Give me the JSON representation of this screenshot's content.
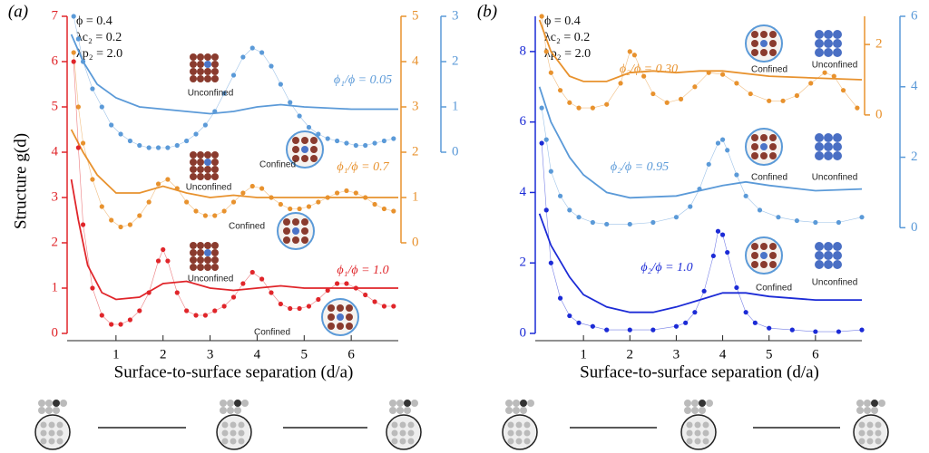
{
  "chart_data": [
    {
      "type": "line",
      "panel_label": "(a)",
      "y_label": "Structure g(d)",
      "x_label": "Surface-to-surface separation (d/a)",
      "params": [
        "ϕ = 0.4",
        "λc₂ = 0.2",
        "λp₂ = 2.0"
      ],
      "annotations": [
        "Unconfined",
        "Confined",
        "Unconfined",
        "Confined",
        "Unconfined",
        "Confined"
      ],
      "xlim": [
        0,
        7
      ],
      "xticks": [
        1,
        2,
        3,
        4,
        5,
        6
      ],
      "ylim": [
        0,
        7
      ],
      "yticks": [
        0,
        1,
        2,
        3,
        4,
        5,
        6,
        7
      ],
      "y2lim": [
        -2,
        5
      ],
      "y2ticks": [
        0,
        1,
        2,
        3,
        4,
        5
      ],
      "y3lim": [
        -4,
        3
      ],
      "y3ticks": [
        0,
        1,
        2,
        3
      ],
      "axis_colors": {
        "y": "#e0252a",
        "y2": "#e8922e",
        "y3": "#5b9ad8"
      },
      "series": [
        {
          "name": "ϕ₁/ϕ = 0.05",
          "color": "#5b9ad8",
          "axis": "y3",
          "style": "markers",
          "x": [
            0.1,
            0.2,
            0.3,
            0.5,
            0.7,
            0.9,
            1.1,
            1.3,
            1.5,
            1.7,
            1.9,
            2.1,
            2.3,
            2.5,
            2.7,
            2.9,
            3.1,
            3.3,
            3.5,
            3.7,
            3.9,
            4.1,
            4.3,
            4.5,
            4.7,
            4.9,
            5.1,
            5.3,
            5.5,
            5.7,
            5.9,
            6.1,
            6.3,
            6.5,
            6.7,
            6.9
          ],
          "values": [
            3.0,
            2.5,
            2.0,
            1.4,
            1.0,
            0.6,
            0.4,
            0.25,
            0.15,
            0.1,
            0.1,
            0.1,
            0.15,
            0.25,
            0.4,
            0.6,
            0.9,
            1.3,
            1.7,
            2.1,
            2.3,
            2.2,
            1.9,
            1.5,
            1.1,
            0.8,
            0.55,
            0.4,
            0.3,
            0.25,
            0.2,
            0.15,
            0.15,
            0.2,
            0.25,
            0.3
          ]
        },
        {
          "color": "#5b9ad8",
          "axis": "y3",
          "style": "line",
          "x": [
            0.05,
            0.3,
            0.6,
            1.0,
            1.5,
            2.0,
            2.5,
            3.0,
            3.5,
            4.0,
            4.5,
            5.0,
            6.0,
            7.0
          ],
          "values": [
            2.6,
            2.0,
            1.5,
            1.2,
            1.0,
            0.95,
            0.9,
            0.85,
            0.9,
            1.0,
            1.05,
            1.0,
            0.95,
            0.95
          ]
        },
        {
          "name": "ϕ₁/ϕ = 0.7",
          "color": "#e8922e",
          "axis": "y2",
          "style": "markers",
          "x": [
            0.1,
            0.2,
            0.3,
            0.5,
            0.7,
            0.9,
            1.1,
            1.3,
            1.5,
            1.7,
            1.9,
            2.1,
            2.3,
            2.5,
            2.7,
            2.9,
            3.1,
            3.3,
            3.5,
            3.7,
            3.9,
            4.1,
            4.3,
            4.5,
            4.7,
            4.9,
            5.1,
            5.3,
            5.5,
            5.7,
            5.9,
            6.1,
            6.3,
            6.5,
            6.7,
            6.9
          ],
          "values": [
            4.2,
            3.0,
            2.2,
            1.4,
            0.8,
            0.5,
            0.35,
            0.4,
            0.6,
            0.9,
            1.3,
            1.4,
            1.2,
            0.9,
            0.7,
            0.6,
            0.6,
            0.7,
            0.9,
            1.1,
            1.25,
            1.2,
            1.0,
            0.85,
            0.75,
            0.75,
            0.8,
            0.9,
            1.0,
            1.1,
            1.15,
            1.1,
            1.0,
            0.85,
            0.75,
            0.7
          ]
        },
        {
          "color": "#e8922e",
          "axis": "y2",
          "style": "line",
          "x": [
            0.05,
            0.3,
            0.6,
            1.0,
            1.5,
            2.0,
            2.5,
            3.0,
            3.5,
            4.0,
            5.0,
            6.0,
            7.0
          ],
          "values": [
            2.5,
            2.0,
            1.5,
            1.1,
            1.1,
            1.25,
            1.1,
            1.0,
            1.05,
            1.0,
            1.0,
            1.0,
            1.0
          ]
        },
        {
          "name": "ϕ₁/ϕ = 1.0",
          "color": "#e0252a",
          "axis": "y",
          "style": "markers",
          "x": [
            0.1,
            0.2,
            0.3,
            0.5,
            0.7,
            0.9,
            1.1,
            1.3,
            1.5,
            1.7,
            1.9,
            2.0,
            2.1,
            2.3,
            2.5,
            2.7,
            2.9,
            3.1,
            3.3,
            3.5,
            3.7,
            3.9,
            4.1,
            4.3,
            4.5,
            4.7,
            4.9,
            5.1,
            5.3,
            5.5,
            5.7,
            5.9,
            6.1,
            6.3,
            6.5,
            6.7,
            6.9
          ],
          "values": [
            6.0,
            4.1,
            2.4,
            1.0,
            0.4,
            0.2,
            0.2,
            0.3,
            0.5,
            0.9,
            1.6,
            1.85,
            1.6,
            0.9,
            0.5,
            0.4,
            0.4,
            0.5,
            0.6,
            0.8,
            1.1,
            1.35,
            1.2,
            0.9,
            0.65,
            0.55,
            0.55,
            0.6,
            0.75,
            0.95,
            1.1,
            1.1,
            1.0,
            0.85,
            0.7,
            0.6,
            0.6
          ]
        },
        {
          "color": "#e0252a",
          "axis": "y",
          "style": "line",
          "x": [
            0.05,
            0.2,
            0.4,
            0.7,
            1.0,
            1.5,
            2.0,
            2.5,
            3.0,
            3.5,
            4.0,
            4.5,
            5.0,
            6.0,
            7.0
          ],
          "values": [
            3.4,
            2.5,
            1.5,
            0.9,
            0.75,
            0.8,
            1.1,
            1.15,
            1.0,
            0.95,
            1.0,
            1.05,
            1.0,
            1.0,
            1.0
          ]
        }
      ]
    },
    {
      "type": "line",
      "panel_label": "(b)",
      "x_label": "Surface-to-surface separation (d/a)",
      "params": [
        "ϕ = 0.4",
        "λc₂ = 0.2",
        "λp₂ = 2.0"
      ],
      "annotations": [
        "Confined",
        "Unconfined",
        "Confined",
        "Unconfined",
        "Confined",
        "Unconfined"
      ],
      "xlim": [
        0,
        7
      ],
      "xticks": [
        1,
        2,
        3,
        4,
        5,
        6
      ],
      "ylim": [
        0,
        9
      ],
      "yticks": [
        0,
        2,
        4,
        6,
        8
      ],
      "y2lim": [
        -6.2,
        2.8
      ],
      "y2ticks": [
        0,
        2
      ],
      "y3lim": [
        -3,
        6
      ],
      "y3ticks": [
        0,
        2,
        4,
        6
      ],
      "axis_colors": {
        "y": "#1c2bd6",
        "y2": "#e8922e",
        "y3": "#5b9ad8"
      },
      "series": [
        {
          "name": "ϕ₂/ϕ = 0.30",
          "color": "#e8922e",
          "axis": "y2",
          "style": "markers",
          "x": [
            0.1,
            0.2,
            0.3,
            0.5,
            0.7,
            0.9,
            1.2,
            1.5,
            1.8,
            2.0,
            2.1,
            2.3,
            2.5,
            2.8,
            3.1,
            3.4,
            3.7,
            4.0,
            4.3,
            4.6,
            5.0,
            5.3,
            5.6,
            5.9,
            6.2,
            6.4,
            6.6,
            6.9
          ],
          "values": [
            2.8,
            1.8,
            1.2,
            0.7,
            0.35,
            0.2,
            0.2,
            0.3,
            0.9,
            1.8,
            1.7,
            1.1,
            0.6,
            0.35,
            0.45,
            0.8,
            1.2,
            1.15,
            0.9,
            0.6,
            0.4,
            0.4,
            0.55,
            0.9,
            1.2,
            1.1,
            0.7,
            0.2
          ]
        },
        {
          "color": "#e8922e",
          "axis": "y2",
          "style": "line",
          "x": [
            0.05,
            0.3,
            0.7,
            1.0,
            1.5,
            2.0,
            2.5,
            3.0,
            3.5,
            4.0,
            5.0,
            6.0,
            7.0
          ],
          "values": [
            2.7,
            1.8,
            1.1,
            0.95,
            0.95,
            1.2,
            1.25,
            1.2,
            1.25,
            1.25,
            1.1,
            1.05,
            1.0
          ]
        },
        {
          "name": "ϕ₂/ϕ = 0.95",
          "color": "#5b9ad8",
          "axis": "y3",
          "style": "markers",
          "x": [
            0.1,
            0.2,
            0.3,
            0.5,
            0.7,
            0.9,
            1.2,
            1.5,
            2.0,
            2.5,
            3.0,
            3.3,
            3.5,
            3.7,
            3.9,
            4.0,
            4.1,
            4.3,
            4.5,
            4.8,
            5.2,
            5.6,
            6.0,
            6.5,
            7.0
          ],
          "values": [
            3.4,
            2.5,
            1.6,
            0.9,
            0.5,
            0.3,
            0.15,
            0.1,
            0.1,
            0.15,
            0.3,
            0.6,
            1.1,
            1.8,
            2.4,
            2.5,
            2.2,
            1.5,
            0.9,
            0.5,
            0.3,
            0.2,
            0.15,
            0.15,
            0.3
          ]
        },
        {
          "color": "#5b9ad8",
          "axis": "y3",
          "style": "line",
          "x": [
            0.05,
            0.3,
            0.7,
            1.0,
            1.5,
            2.0,
            3.0,
            4.0,
            4.5,
            5.0,
            6.0,
            7.0
          ],
          "values": [
            4.0,
            3.0,
            2.0,
            1.5,
            1.0,
            0.85,
            0.9,
            1.2,
            1.3,
            1.2,
            1.05,
            1.1
          ]
        },
        {
          "name": "ϕ₂/ϕ = 1.0",
          "color": "#1c2bd6",
          "axis": "y",
          "style": "markers",
          "x": [
            0.1,
            0.2,
            0.3,
            0.5,
            0.7,
            0.9,
            1.2,
            1.5,
            2.0,
            2.5,
            3.0,
            3.2,
            3.4,
            3.6,
            3.8,
            3.9,
            4.0,
            4.1,
            4.3,
            4.5,
            4.7,
            5.0,
            5.5,
            6.0,
            6.5,
            7.0
          ],
          "values": [
            5.4,
            3.5,
            2.0,
            1.0,
            0.5,
            0.3,
            0.2,
            0.1,
            0.1,
            0.1,
            0.2,
            0.3,
            0.6,
            1.2,
            2.2,
            2.9,
            2.8,
            2.3,
            1.3,
            0.6,
            0.3,
            0.15,
            0.1,
            0.05,
            0.05,
            0.1
          ]
        },
        {
          "color": "#1c2bd6",
          "axis": "y",
          "style": "line",
          "x": [
            0.05,
            0.3,
            0.7,
            1.0,
            1.5,
            2.0,
            2.5,
            3.0,
            3.5,
            4.0,
            4.5,
            5.0,
            6.0,
            7.0
          ],
          "values": [
            3.4,
            2.5,
            1.6,
            1.1,
            0.75,
            0.6,
            0.6,
            0.75,
            0.95,
            1.15,
            1.15,
            1.05,
            0.95,
            0.95
          ]
        }
      ]
    }
  ]
}
